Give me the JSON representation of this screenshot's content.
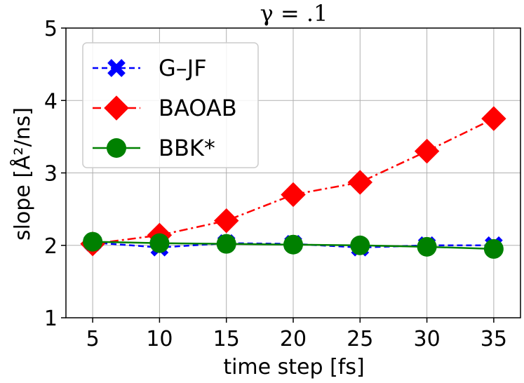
{
  "chart_data": {
    "type": "line",
    "title": "γ = .1",
    "xlabel": "time step [fs]",
    "ylabel": "slope [Å²/ns]",
    "x": [
      5,
      10,
      15,
      20,
      25,
      30,
      35
    ],
    "xlim": [
      3,
      37
    ],
    "ylim": [
      1,
      5
    ],
    "xticks": [
      "5",
      "10",
      "15",
      "20",
      "25",
      "30",
      "35"
    ],
    "yticks": [
      "1",
      "2",
      "3",
      "4",
      "5"
    ],
    "grid": true,
    "legend_position": "top-left",
    "series": [
      {
        "name": "G–JF",
        "color": "#0000ff",
        "dash": "dashed",
        "marker": "x",
        "values": [
          2.04,
          1.97,
          2.03,
          2.02,
          1.97,
          2.0,
          2.0
        ]
      },
      {
        "name": "BAOAB",
        "color": "#ff0000",
        "dash": "dashdot",
        "marker": "diamond",
        "values": [
          2.02,
          2.14,
          2.34,
          2.7,
          2.87,
          3.3,
          3.75
        ]
      },
      {
        "name": "BBK*",
        "color": "#008000",
        "dash": "solid",
        "marker": "circle",
        "values": [
          2.05,
          2.03,
          2.02,
          2.01,
          2.0,
          1.98,
          1.95
        ]
      }
    ]
  }
}
